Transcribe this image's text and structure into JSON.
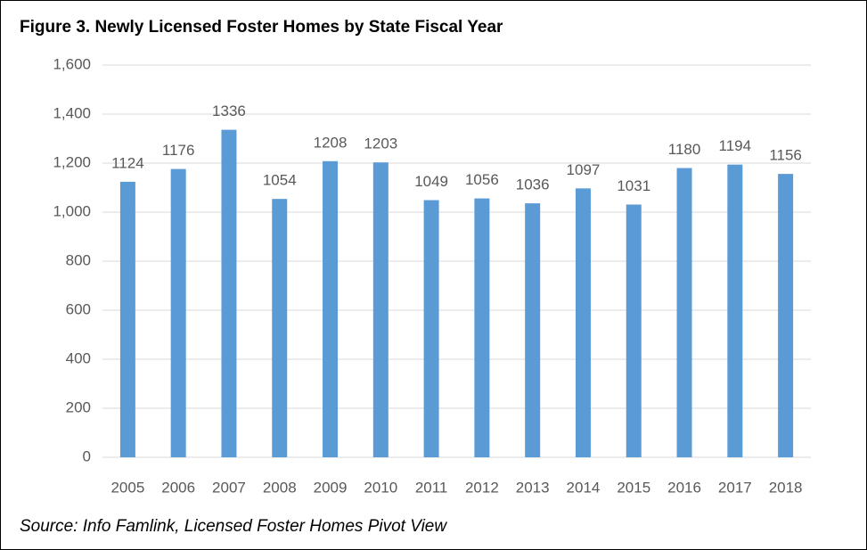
{
  "chart_data": {
    "type": "bar",
    "title": "Figure 3. Newly Licensed Foster Homes by State Fiscal Year",
    "source": "Source: Info Famlink, Licensed Foster Homes Pivot View",
    "categories": [
      "2005",
      "2006",
      "2007",
      "2008",
      "2009",
      "2010",
      "2011",
      "2012",
      "2013",
      "2014",
      "2015",
      "2016",
      "2017",
      "2018"
    ],
    "values": [
      1124,
      1176,
      1336,
      1054,
      1208,
      1203,
      1049,
      1056,
      1036,
      1097,
      1031,
      1180,
      1194,
      1156
    ],
    "color": "#5b9bd5",
    "ylim": [
      0,
      1600
    ],
    "yticks": [
      0,
      200,
      400,
      600,
      800,
      {
        "value": 1000,
        "label": "1,000"
      },
      {
        "value": 1200,
        "label": "1,200"
      },
      {
        "value": 1400,
        "label": "1,400"
      },
      {
        "value": 1600,
        "label": "1,600"
      }
    ],
    "grid": true
  }
}
